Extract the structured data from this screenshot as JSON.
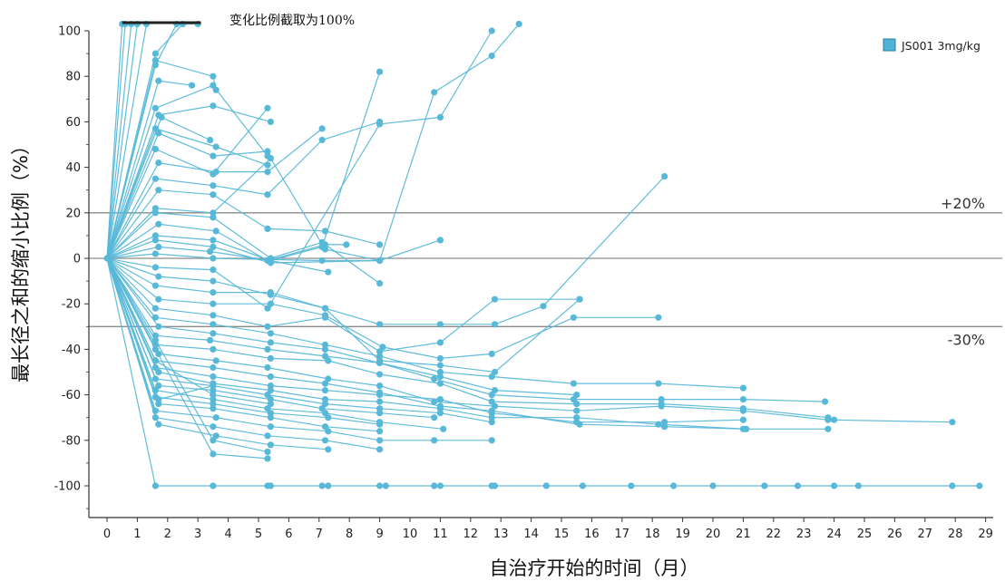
{
  "chart_data": {
    "type": "line",
    "xlabel": "自治疗开始的时间（月）",
    "ylabel": "最长径之和的缩小比例（%）",
    "xlim": [
      -0.6,
      29.4
    ],
    "ylim": [
      -110,
      100
    ],
    "x_ticks": [
      0,
      1,
      2,
      3,
      4,
      5,
      6,
      7,
      8,
      9,
      10,
      11,
      12,
      13,
      14,
      15,
      16,
      17,
      18,
      19,
      20,
      21,
      22,
      23,
      24,
      25,
      26,
      27,
      28,
      29
    ],
    "y_ticks": [
      100,
      80,
      60,
      40,
      20,
      0,
      -20,
      -40,
      -60,
      -80,
      -100
    ],
    "grid": false,
    "legend": {
      "position": "top-right",
      "items": [
        {
          "label": "JS001 3mg/kg",
          "color": "#4fb3d9"
        }
      ]
    },
    "reference_lines": [
      {
        "y": 20,
        "label": "+20%"
      },
      {
        "y": 0,
        "label": ""
      },
      {
        "y": -30,
        "label": "-30%"
      }
    ],
    "annotation": {
      "text": "变化比例截取为100%",
      "x_range": [
        0.5,
        3.1
      ],
      "y": 103
    },
    "line_color": "#57b8d8",
    "series": [
      {
        "x": [
          0,
          0.5
        ],
        "y": [
          0,
          103
        ]
      },
      {
        "x": [
          0,
          0.6
        ],
        "y": [
          0,
          103
        ]
      },
      {
        "x": [
          0,
          0.8
        ],
        "y": [
          0,
          103
        ]
      },
      {
        "x": [
          0,
          1.0
        ],
        "y": [
          0,
          103
        ]
      },
      {
        "x": [
          0,
          1.3
        ],
        "y": [
          0,
          103
        ]
      },
      {
        "x": [
          0,
          1.6,
          2.3,
          3.0
        ],
        "y": [
          0,
          85,
          103,
          103
        ]
      },
      {
        "x": [
          0,
          1.6,
          2.5
        ],
        "y": [
          0,
          90,
          103
        ]
      },
      {
        "x": [
          0,
          1.7,
          2.8
        ],
        "y": [
          0,
          78,
          76
        ]
      },
      {
        "x": [
          0,
          1.6,
          3.5,
          3.6
        ],
        "y": [
          0,
          87,
          80,
          74
        ]
      },
      {
        "x": [
          0,
          1.7,
          3.5,
          5.4
        ],
        "y": [
          0,
          63,
          67,
          60
        ]
      },
      {
        "x": [
          0,
          1.6,
          3.5,
          5.3
        ],
        "y": [
          0,
          66,
          76,
          45
        ]
      },
      {
        "x": [
          0,
          1.8,
          3.4
        ],
        "y": [
          0,
          62,
          52
        ]
      },
      {
        "x": [
          0,
          1.6,
          3.6,
          5.3
        ],
        "y": [
          0,
          57,
          49,
          41
        ]
      },
      {
        "x": [
          0,
          1.7,
          3.5,
          5.3
        ],
        "y": [
          0,
          55,
          45,
          47
        ]
      },
      {
        "x": [
          0,
          1.6,
          3.5,
          5.3
        ],
        "y": [
          0,
          48,
          37,
          66
        ]
      },
      {
        "x": [
          0,
          1.7,
          3.6,
          5.3,
          7.1
        ],
        "y": [
          0,
          42,
          38,
          38,
          57
        ]
      },
      {
        "x": [
          0,
          1.6,
          3.5,
          5.3,
          7.1,
          9.0
        ],
        "y": [
          0,
          35,
          32,
          28,
          52,
          60
        ]
      },
      {
        "x": [
          0,
          1.7,
          3.5,
          5.3,
          7.2,
          9.0
        ],
        "y": [
          0,
          30,
          28,
          13,
          12,
          6
        ]
      },
      {
        "x": [
          0,
          1.6,
          3.5,
          5.4,
          7.2,
          9.0
        ],
        "y": [
          0,
          22,
          20,
          44,
          4,
          -1
        ]
      },
      {
        "x": [
          0,
          1.6,
          3.5,
          5.4,
          7.1,
          9.0
        ],
        "y": [
          0,
          20,
          18,
          0,
          7,
          -11
        ]
      },
      {
        "x": [
          0,
          1.7,
          3.6,
          5.3,
          7.2,
          7.9
        ],
        "y": [
          0,
          15,
          12,
          -1,
          6,
          6
        ]
      },
      {
        "x": [
          0,
          1.6,
          3.5,
          5.4,
          7.3
        ],
        "y": [
          0,
          10,
          8,
          -1,
          -6
        ]
      },
      {
        "x": [
          0,
          1.6,
          3.5,
          5.4,
          9.0,
          11.0
        ],
        "y": [
          0,
          8,
          5,
          -2,
          -1,
          8
        ]
      },
      {
        "x": [
          0,
          1.7,
          3.4,
          5.4,
          7.1,
          9.0
        ],
        "y": [
          0,
          5,
          3,
          -1,
          5,
          82
        ]
      },
      {
        "x": [
          0,
          1.6,
          3.5,
          7.1,
          9.0,
          10.8,
          12.7,
          13.6
        ],
        "y": [
          0,
          2,
          0,
          -1,
          -1,
          73,
          89,
          103
        ]
      },
      {
        "x": [
          0,
          1.6,
          3.5,
          5.3,
          9.0,
          11.0,
          12.7
        ],
        "y": [
          0,
          -4,
          -5,
          -22,
          59,
          62,
          100
        ]
      },
      {
        "x": [
          0,
          1.7,
          3.5,
          5.4,
          7.2,
          9.0,
          11.0,
          12.8,
          14.4,
          18.4
        ],
        "y": [
          0,
          -8,
          -10,
          -16,
          -22,
          -29,
          -29,
          -29,
          -21,
          36
        ]
      },
      {
        "x": [
          0,
          1.6,
          3.5,
          5.4,
          7.2,
          9.0,
          11.0,
          12.8,
          15.6
        ],
        "y": [
          0,
          -12,
          -15,
          -15,
          -22,
          -45,
          -47,
          -50,
          -18
        ]
      },
      {
        "x": [
          0,
          1.7,
          3.5,
          5.4,
          7.2,
          9.1,
          11.0,
          12.7,
          15.4,
          18.2
        ],
        "y": [
          0,
          -18,
          -20,
          -20,
          -25,
          -39,
          -44,
          -42,
          -26,
          -26
        ]
      },
      {
        "x": [
          0,
          1.6,
          3.5,
          5.3,
          7.2,
          9.0,
          11.0,
          12.8,
          15.6
        ],
        "y": [
          0,
          -22,
          -25,
          -30,
          -26,
          -41,
          -37,
          -18,
          -18
        ]
      },
      {
        "x": [
          0,
          1.6,
          3.5,
          5.4,
          7.2,
          9.0,
          11.0,
          12.7,
          15.4,
          18.2,
          21.0
        ],
        "y": [
          0,
          -26,
          -29,
          -33,
          -38,
          -43,
          -50,
          -52,
          -55,
          -55,
          -57
        ]
      },
      {
        "x": [
          0,
          1.7,
          3.5,
          5.4,
          7.2,
          9.0,
          11.0,
          12.8,
          15.5
        ],
        "y": [
          0,
          -30,
          -33,
          -37,
          -40,
          -46,
          -52,
          -58,
          -60
        ]
      },
      {
        "x": [
          0,
          1.6,
          3.4,
          5.3,
          7.2,
          9.0,
          10.8,
          12.7,
          15.4,
          18.3,
          21.0,
          23.7
        ],
        "y": [
          0,
          -34,
          -36,
          -40,
          -43,
          -46,
          -53,
          -60,
          -62,
          -62,
          -62,
          -63
        ]
      },
      {
        "x": [
          0,
          1.6,
          3.5,
          5.4,
          7.3,
          9.0,
          11.0,
          12.7,
          15.5,
          18.3,
          21.0,
          23.8,
          24.0
        ],
        "y": [
          0,
          -38,
          -40,
          -44,
          -45,
          -51,
          -55,
          -63,
          -64,
          -64,
          -66,
          -70,
          -71
        ]
      },
      {
        "x": [
          0,
          1.7,
          3.6,
          5.3,
          7.3,
          9.0,
          10.8,
          12.8,
          15.5,
          18.3,
          21.0,
          23.8,
          27.9
        ],
        "y": [
          0,
          -42,
          -45,
          -48,
          -53,
          -56,
          -63,
          -65,
          -67,
          -65,
          -67,
          -71,
          -72
        ]
      },
      {
        "x": [
          0,
          1.6,
          3.5,
          5.4,
          7.2,
          9.0,
          11.0,
          12.7,
          15.6,
          18.4,
          21.0,
          23.8
        ],
        "y": [
          0,
          -45,
          -48,
          -52,
          -55,
          -59,
          -65,
          -67,
          -73,
          -74,
          -75,
          -75
        ]
      },
      {
        "x": [
          0,
          1.6,
          3.5,
          5.4,
          7.2,
          9.0,
          11.0,
          12.7,
          15.5,
          18.4,
          21.0
        ],
        "y": [
          0,
          -48,
          -52,
          -56,
          -58,
          -60,
          -62,
          -68,
          -72,
          -72,
          -71
        ]
      },
      {
        "x": [
          0,
          1.7,
          3.5,
          5.4,
          7.2,
          9.0,
          11.0,
          12.7,
          15.5,
          18.2,
          21.1
        ],
        "y": [
          0,
          -50,
          -55,
          -58,
          -62,
          -63,
          -66,
          -70,
          -70,
          -73,
          -75
        ]
      },
      {
        "x": [
          0,
          1.6,
          3.5,
          5.3,
          7.2,
          9.0,
          11.0,
          12.7
        ],
        "y": [
          0,
          -53,
          -56,
          -60,
          -64,
          -66,
          -68,
          -72
        ]
      },
      {
        "x": [
          0,
          1.7,
          3.5,
          5.4,
          7.1,
          9.0,
          10.8
        ],
        "y": [
          0,
          -56,
          -58,
          -62,
          -66,
          -68,
          -70
        ]
      },
      {
        "x": [
          0,
          1.6,
          3.5,
          5.3,
          7.2,
          9.0,
          11.1
        ],
        "y": [
          0,
          -58,
          -62,
          -66,
          -68,
          -72,
          -75
        ]
      },
      {
        "x": [
          0,
          1.6,
          3.5,
          5.4,
          7.3,
          9.0
        ],
        "y": [
          0,
          -61,
          -64,
          -68,
          -70,
          -73
        ]
      },
      {
        "x": [
          0,
          1.7,
          3.5,
          5.4,
          7.2,
          9.0
        ],
        "y": [
          0,
          -64,
          -66,
          -70,
          -74,
          -76
        ]
      },
      {
        "x": [
          0,
          1.6,
          3.6,
          5.4,
          7.3,
          9.0,
          10.8,
          12.7
        ],
        "y": [
          0,
          -67,
          -70,
          -74,
          -76,
          -80,
          -80,
          -80
        ]
      },
      {
        "x": [
          0,
          1.6,
          3.5,
          5.3,
          7.2,
          9.0
        ],
        "y": [
          0,
          -70,
          -74,
          -78,
          -80,
          -84
        ]
      },
      {
        "x": [
          0,
          1.7,
          3.6,
          5.4,
          7.3
        ],
        "y": [
          0,
          -73,
          -78,
          -82,
          -84
        ]
      },
      {
        "x": [
          0,
          1.6,
          3.5,
          5.4
        ],
        "y": [
          0,
          -45,
          -60,
          -64
        ]
      },
      {
        "x": [
          0,
          1.6,
          3.5,
          5.3
        ],
        "y": [
          0,
          -40,
          -86,
          -88
        ]
      },
      {
        "x": [
          0,
          1.6,
          3.5,
          5.3
        ],
        "y": [
          0,
          -36,
          -80,
          -85
        ]
      },
      {
        "x": [
          0,
          1.7,
          3.5
        ],
        "y": [
          0,
          -62,
          -56
        ]
      },
      {
        "x": [
          0,
          1.6,
          3.5,
          5.3,
          5.4,
          7.1,
          7.3,
          9.0,
          9.2,
          10.8,
          11.0,
          12.7,
          12.8,
          14.5,
          15.7,
          17.3,
          18.7,
          20.0,
          21.7,
          22.8,
          24.0,
          24.8,
          27.9,
          28.8
        ],
        "y": [
          0,
          -100,
          -100,
          -100,
          -100,
          -100,
          -100,
          -100,
          -100,
          -100,
          -100,
          -100,
          -100,
          -100,
          -100,
          -100,
          -100,
          -100,
          -100,
          -100,
          -100,
          -100,
          -100,
          -100
        ]
      }
    ]
  }
}
